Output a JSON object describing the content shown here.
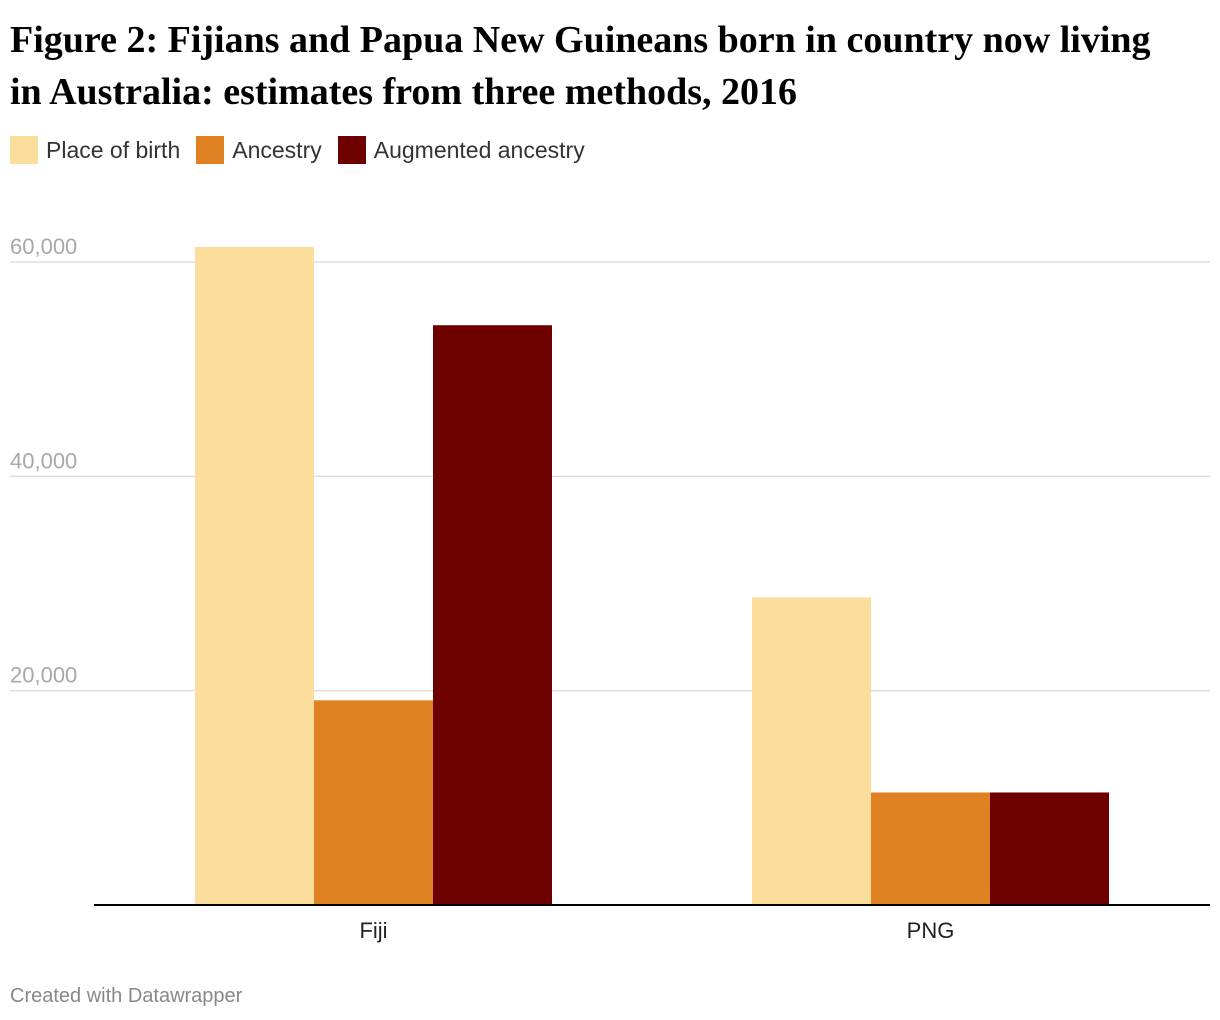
{
  "title": "Figure 2: Fijians and Papua New Guineans born in country now living in Australia: estimates from three methods, 2016",
  "footer": "Created with Datawrapper",
  "colors": {
    "place_of_birth": "#fcde9c",
    "ancestry": "#e08224",
    "augmented_ancestry": "#6e0000",
    "grid": "#dddddd",
    "axis": "#000000",
    "tick_label": "#a8a8a8"
  },
  "legend": [
    {
      "label": "Place of birth",
      "color": "#fcde9c"
    },
    {
      "label": "Ancestry",
      "color": "#e08224"
    },
    {
      "label": "Augmented ancestry",
      "color": "#6e0000"
    }
  ],
  "chart_data": {
    "type": "bar",
    "title": "Figure 2: Fijians and Papua New Guineans born in country now living in Australia: estimates from three methods, 2016",
    "categories": [
      "Fiji",
      "PNG"
    ],
    "series": [
      {
        "name": "Place of birth",
        "values": [
          61400,
          28700
        ]
      },
      {
        "name": "Ancestry",
        "values": [
          19100,
          10500
        ]
      },
      {
        "name": "Augmented ancestry",
        "values": [
          54100,
          10500
        ]
      }
    ],
    "ylim": [
      0,
      60000
    ],
    "yticks": [
      20000,
      40000,
      60000
    ],
    "ytick_labels": [
      "20,000",
      "40,000",
      "60,000"
    ],
    "xlabel": "",
    "ylabel": "",
    "grid": true,
    "legend_position": "top-left"
  }
}
